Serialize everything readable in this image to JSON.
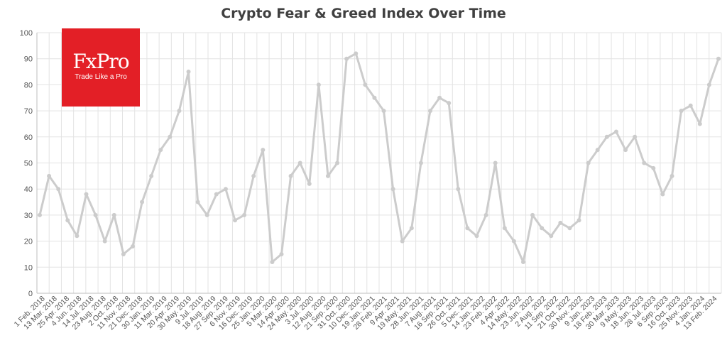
{
  "chart_data": {
    "type": "line",
    "title": "Crypto Fear & Greed Index Over Time",
    "xlabel": "",
    "ylabel": "",
    "ylim": [
      0,
      100
    ],
    "yticks": [
      0,
      10,
      20,
      30,
      40,
      50,
      60,
      70,
      80,
      90,
      100
    ],
    "xticks": [
      "1 Feb. 2018",
      "13 Mar. 2018",
      "25 Apr. 2018",
      "4 Jun. 2018",
      "14 Jul. 2018",
      "23 Aug. 2018",
      "2 Oct. 2018",
      "11 Nov. 2018",
      "21 Dec. 2018",
      "30 Jan. 2019",
      "11 Mar. 2019",
      "20 Apr. 2019",
      "30 May. 2019",
      "9 Jul. 2019",
      "18 Aug. 2019",
      "27 Sep. 2019",
      "6 Nov. 2019",
      "16 Dec. 2019",
      "25 Jan. 2020",
      "5 Mar. 2020",
      "14 Apr. 2020",
      "24 May. 2020",
      "3 Jul. 2020",
      "12 Aug. 2020",
      "21 Sep. 2020",
      "31 Oct. 2020",
      "10 Dec. 2020",
      "19 Jan. 2021",
      "28 Feb. 2021",
      "9 Apr. 2021",
      "19 May. 2021",
      "28 Jun. 2021",
      "7 Aug. 2021",
      "16 Sep. 2021",
      "26 Oct. 2021",
      "5 Dec. 2021",
      "14 Jan. 2022",
      "23 Feb. 2022",
      "4 Apr. 2022",
      "14 May. 2022",
      "23 Jun. 2022",
      "2 Aug. 2022",
      "11 Sep. 2022",
      "21 Oct. 2022",
      "30 Nov. 2022",
      "9 Jan. 2023",
      "18 Feb. 2023",
      "30 Mar. 2023",
      "9 May. 2023",
      "18 Jun. 2023",
      "28 Jul. 2023",
      "6 Sep. 2023",
      "16 Oct. 2023",
      "25 Nov. 2023",
      "4 Jan. 2024",
      "13 Feb. 2024"
    ],
    "series": [
      {
        "color": "#cccccc",
        "x": [
          "2018-02",
          "2018-03",
          "2018-04",
          "2018-05",
          "2018-06",
          "2018-07",
          "2018-08",
          "2018-09",
          "2018-10",
          "2018-11",
          "2018-12",
          "2019-01",
          "2019-02",
          "2019-03",
          "2019-04",
          "2019-05",
          "2019-06",
          "2019-07",
          "2019-08",
          "2019-09",
          "2019-10",
          "2019-11",
          "2019-12",
          "2020-01",
          "2020-02",
          "2020-03",
          "2020-04",
          "2020-05",
          "2020-06",
          "2020-07",
          "2020-08",
          "2020-09",
          "2020-10",
          "2020-11",
          "2020-12",
          "2021-01",
          "2021-02",
          "2021-03",
          "2021-04",
          "2021-05",
          "2021-06",
          "2021-07",
          "2021-08",
          "2021-09",
          "2021-10",
          "2021-11",
          "2021-12",
          "2022-01",
          "2022-02",
          "2022-03",
          "2022-04",
          "2022-05",
          "2022-06",
          "2022-07",
          "2022-08",
          "2022-09",
          "2022-10",
          "2022-11",
          "2022-12",
          "2023-01",
          "2023-02",
          "2023-03",
          "2023-04",
          "2023-05",
          "2023-06",
          "2023-07",
          "2023-08",
          "2023-09",
          "2023-10",
          "2023-11",
          "2023-12",
          "2024-01",
          "2024-02",
          "2024-03"
        ],
        "values": [
          30,
          45,
          40,
          28,
          22,
          38,
          30,
          20,
          30,
          15,
          18,
          35,
          45,
          55,
          60,
          70,
          85,
          35,
          30,
          38,
          40,
          28,
          30,
          45,
          55,
          12,
          15,
          45,
          50,
          42,
          80,
          45,
          50,
          90,
          92,
          80,
          75,
          70,
          40,
          20,
          25,
          50,
          70,
          75,
          73,
          40,
          25,
          22,
          30,
          50,
          25,
          20,
          12,
          30,
          25,
          22,
          27,
          25,
          28,
          50,
          55,
          60,
          62,
          55,
          60,
          50,
          48,
          38,
          45,
          70,
          72,
          65,
          80,
          90
        ]
      }
    ]
  },
  "logo": {
    "brand": "FxPro",
    "tagline": "Trade Like a Pro"
  }
}
